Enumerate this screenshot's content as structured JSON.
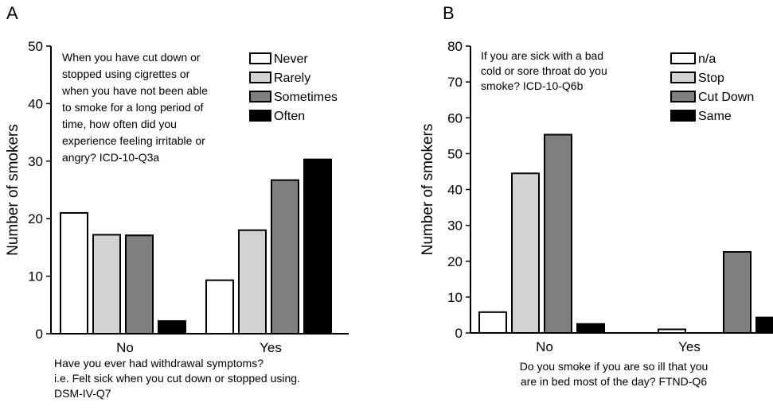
{
  "colors": {
    "never": "#ffffff",
    "rarely": "#d3d3d3",
    "sometimes": "#7f7f7f",
    "often": "#000000"
  },
  "chart_data": [
    {
      "panel": "A",
      "type": "bar",
      "ylabel": "Number of smokers",
      "ylim": [
        0,
        50
      ],
      "yticks": [
        0,
        10,
        20,
        30,
        40,
        50
      ],
      "categories": [
        "No",
        "Yes"
      ],
      "annotation": [
        "When you have cut down or",
        "stopped using cigrettes or",
        "when you have not been able",
        "to smoke for a long period of",
        "time, how often did you",
        "experience feeling irritable or",
        "angry? ICD-10-Q3a"
      ],
      "xcaption": [
        "Have you ever had withdrawal symptoms?",
        "i.e. Felt sick when you cut down or stopped using.",
        "DSM-IV-Q7"
      ],
      "legend_position": "top-right",
      "series": [
        {
          "name": "Never",
          "color": "#ffffff",
          "values": [
            21,
            9.3
          ]
        },
        {
          "name": "Rarely",
          "color": "#d3d3d3",
          "values": [
            17.2,
            18
          ]
        },
        {
          "name": "Sometimes",
          "color": "#7f7f7f",
          "values": [
            17.1,
            26.7
          ]
        },
        {
          "name": "Often",
          "color": "#000000",
          "values": [
            2.2,
            30.3
          ]
        }
      ],
      "grid": false
    },
    {
      "panel": "B",
      "type": "bar",
      "ylabel": "Number of smokers",
      "ylim": [
        0,
        80
      ],
      "yticks": [
        0,
        10,
        20,
        30,
        40,
        50,
        60,
        70,
        80
      ],
      "categories": [
        "No",
        "Yes"
      ],
      "annotation": [
        "If you are sick with a bad",
        "cold or sore throat do you",
        "smoke? ICD-10-Q6b"
      ],
      "xcaption": [
        "Do you smoke if you are so ill that you",
        "are in bed most of the day? FTND-Q6"
      ],
      "legend_position": "top-right",
      "series": [
        {
          "name": "n/a",
          "color": "#ffffff",
          "values": [
            5.8,
            1
          ]
        },
        {
          "name": "Stop",
          "color": "#d3d3d3",
          "values": [
            44.5,
            0
          ]
        },
        {
          "name": "Cut Down",
          "color": "#7f7f7f",
          "values": [
            55.3,
            22.6
          ]
        },
        {
          "name": "Same",
          "color": "#000000",
          "values": [
            2.5,
            4.3
          ]
        }
      ],
      "grid": false
    }
  ]
}
